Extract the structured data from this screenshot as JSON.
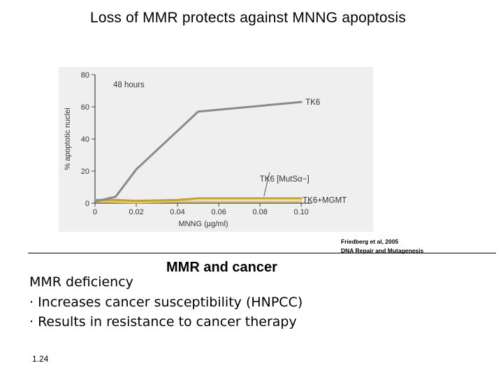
{
  "slide": {
    "title": "Loss of MMR protects against MNNG apoptosis",
    "citation_line1": "Friedberg et al, 2005",
    "citation_line2": "DNA Repair and Mutagenesis",
    "section_heading": "MMR and cancer",
    "body_lines": [
      "MMR deficiency",
      "· Increases cancer susceptibility (HNPCC)",
      "· Results in resistance to cancer therapy"
    ],
    "page_number": "1.24"
  },
  "chart_data": {
    "type": "line",
    "title": "",
    "annotation": "48 hours",
    "xlabel": "MNNG (µg/ml)",
    "ylabel": "% apoptotic nuclei",
    "xlim": [
      0,
      0.105
    ],
    "ylim": [
      0,
      80
    ],
    "x_ticks": [
      "0",
      "0.02",
      "0.04",
      "0.06",
      "0.08",
      "0.10"
    ],
    "y_ticks": [
      "0",
      "20",
      "40",
      "60",
      "80"
    ],
    "x_tick_values": [
      0,
      0.02,
      0.04,
      0.06,
      0.08,
      0.1
    ],
    "y_tick_values": [
      0,
      20,
      40,
      60,
      80
    ],
    "grid": false,
    "series": [
      {
        "name": "TK6",
        "color": "#8a8a8a",
        "x": [
          0,
          0.01,
          0.02,
          0.05,
          0.1
        ],
        "y": [
          1,
          4,
          21,
          57,
          63
        ]
      },
      {
        "name": "TK6 [MutSα−]",
        "color": "#c8a02c",
        "x": [
          0,
          0.01,
          0.02,
          0.04,
          0.05,
          0.1
        ],
        "y": [
          2,
          2,
          1.5,
          2,
          3,
          3
        ]
      },
      {
        "name": "TK6+MGMT",
        "color": "#e0c878",
        "x": [
          0,
          0.02,
          0.04,
          0.05,
          0.1
        ],
        "y": [
          1,
          0.5,
          1,
          1,
          1
        ]
      }
    ]
  }
}
